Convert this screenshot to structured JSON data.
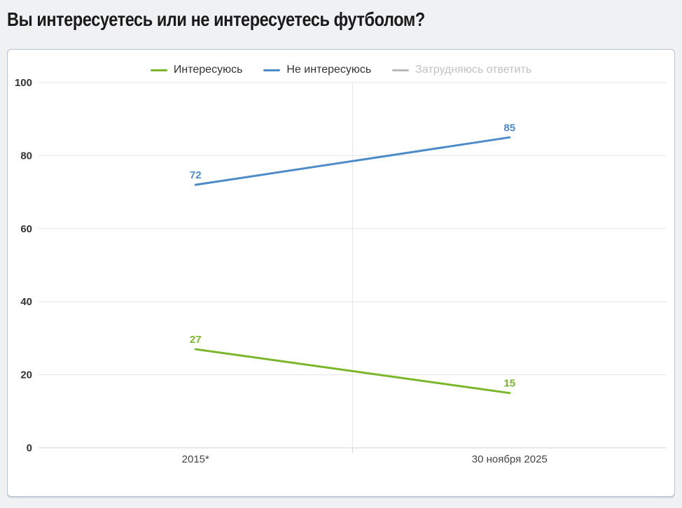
{
  "page": {
    "title": "Вы интересуетесь или не интересуетесь футболом?"
  },
  "chart_data": {
    "type": "line",
    "title": "",
    "categories": [
      "2015*",
      "30 ноября 2025"
    ],
    "series": [
      {
        "name": "Интересуюсь",
        "values": [
          27,
          15
        ],
        "color": "#7ab629",
        "visible": true
      },
      {
        "name": "Не интересуюсь",
        "values": [
          72,
          85
        ],
        "color": "#4d8cc8",
        "visible": true
      },
      {
        "name": "Затрудняюсь ответить",
        "values": null,
        "color": "#b9b9b9",
        "visible": false
      }
    ],
    "ylim": [
      0,
      100
    ],
    "yticks": [
      0,
      20,
      40,
      60,
      80,
      100
    ],
    "grid": true,
    "legend_position": "top",
    "data_labels": true
  },
  "colors": {
    "page_bg": "#f0f1f2",
    "card_bg": "#ffffff",
    "card_border": "#b7c4d1",
    "grid_line": "#e6e6e6",
    "axis_line": "#ccd6de",
    "y_label": "#333333",
    "x_label": "#444444",
    "legend_text": "#333333",
    "legend_text_muted": "#c2c2c2",
    "title_text": "#1a1a1a"
  }
}
